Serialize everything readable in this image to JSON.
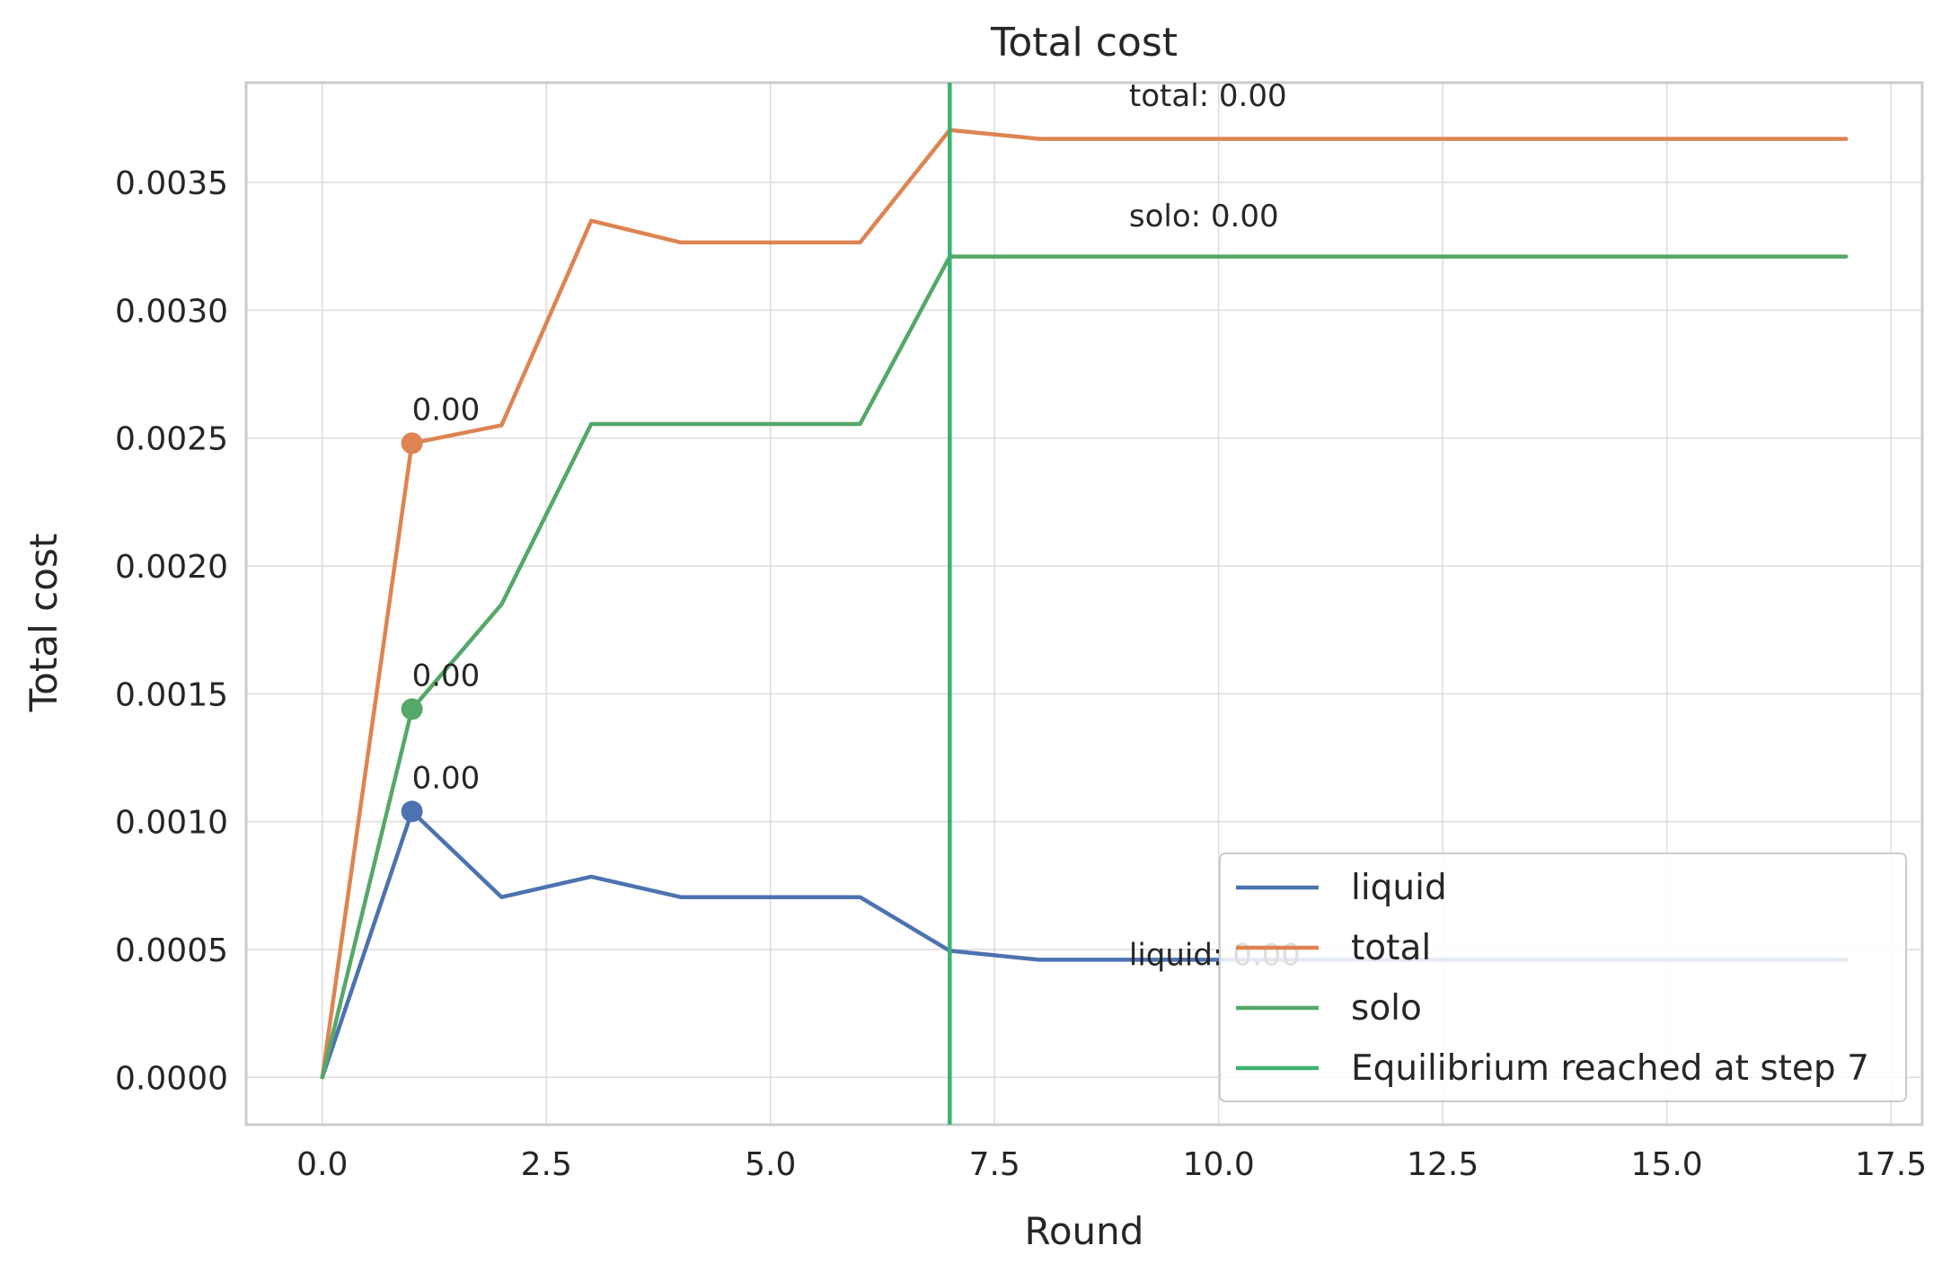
{
  "chart_data": {
    "type": "line",
    "title": "Total cost",
    "xlabel": "Round",
    "ylabel": "Total cost",
    "xlim": [
      -0.85,
      17.85
    ],
    "ylim": [
      -0.000185,
      0.00389
    ],
    "xticks": [
      0.0,
      2.5,
      5.0,
      7.5,
      10.0,
      12.5,
      15.0,
      17.5
    ],
    "xtick_labels": [
      "0.0",
      "2.5",
      "5.0",
      "7.5",
      "10.0",
      "12.5",
      "15.0",
      "17.5"
    ],
    "yticks": [
      0.0,
      0.0005,
      0.001,
      0.0015,
      0.002,
      0.0025,
      0.003,
      0.0035
    ],
    "ytick_labels": [
      "0.0000",
      "0.0005",
      "0.0010",
      "0.0015",
      "0.0020",
      "0.0025",
      "0.0030",
      "0.0035"
    ],
    "grid": true,
    "legend_position": "bottom-right",
    "x": [
      0,
      1,
      2,
      3,
      4,
      5,
      6,
      7,
      8,
      9,
      10,
      11,
      12,
      13,
      14,
      15,
      16,
      17
    ],
    "series": [
      {
        "name": "liquid",
        "color": "#4c72b0",
        "values": [
          0.0,
          0.00104,
          0.000705,
          0.000785,
          0.000705,
          0.000705,
          0.000705,
          0.000495,
          0.00046,
          0.00046,
          0.00046,
          0.00046,
          0.00046,
          0.00046,
          0.00046,
          0.00046,
          0.00046,
          0.00046
        ]
      },
      {
        "name": "total",
        "color": "#dd8452",
        "values": [
          0.0,
          0.00248,
          0.00255,
          0.00335,
          0.003265,
          0.003265,
          0.003265,
          0.003705,
          0.00367,
          0.00367,
          0.00367,
          0.00367,
          0.00367,
          0.00367,
          0.00367,
          0.00367,
          0.00367,
          0.00367
        ]
      },
      {
        "name": "solo",
        "color": "#55a868",
        "values": [
          0.0,
          0.00144,
          0.00185,
          0.002555,
          0.002555,
          0.002555,
          0.002555,
          0.00321,
          0.00321,
          0.00321,
          0.00321,
          0.00321,
          0.00321,
          0.00321,
          0.00321,
          0.00321,
          0.00321,
          0.00321
        ]
      }
    ],
    "markers": [
      {
        "series": "total",
        "x": 1,
        "y": 0.00248,
        "label": "0.00"
      },
      {
        "series": "solo",
        "x": 1,
        "y": 0.00144,
        "label": "0.00"
      },
      {
        "series": "liquid",
        "x": 1,
        "y": 0.00104,
        "label": "0.00"
      }
    ],
    "annotations": [
      {
        "text": "total: 0.00",
        "x": 9,
        "y": 0.00384
      },
      {
        "text": "solo: 0.00",
        "x": 9,
        "y": 0.00337
      },
      {
        "text": "liquid: 0.00",
        "x": 9,
        "y": 0.00048
      }
    ],
    "vline": {
      "x": 7,
      "label": "Equilibrium reached at step 7",
      "color": "#3cb371"
    }
  }
}
